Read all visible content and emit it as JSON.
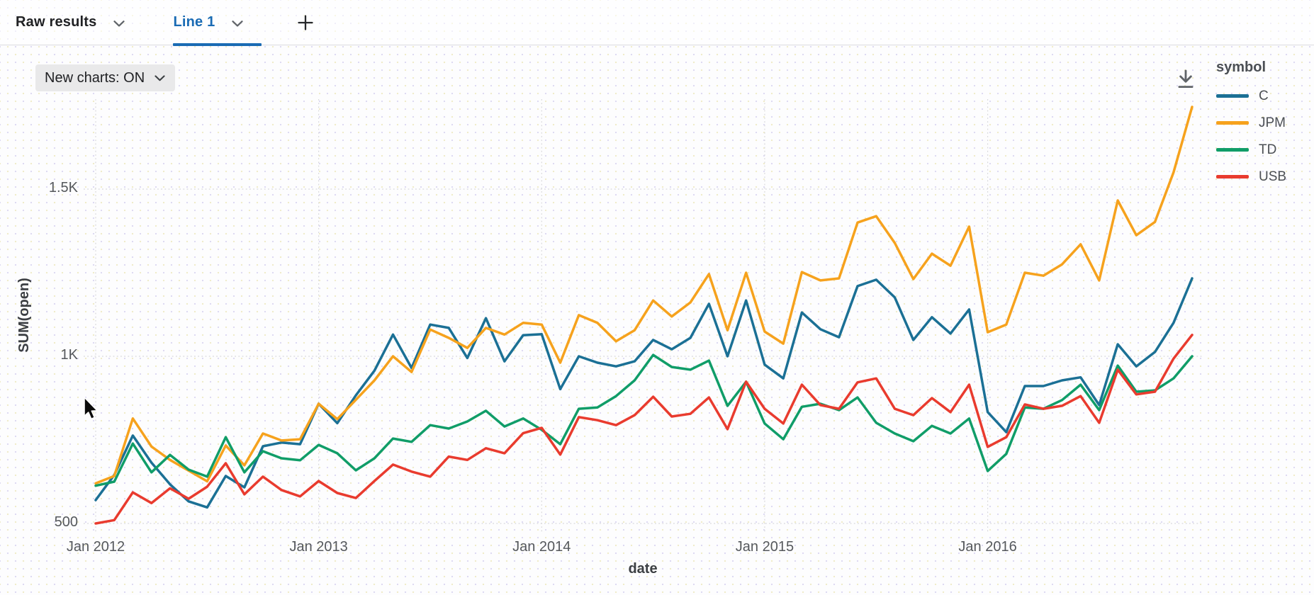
{
  "tab_bar": {
    "tabs": [
      {
        "label": "Raw results",
        "active": false
      },
      {
        "label": "Line 1",
        "active": true
      }
    ],
    "add_label": "+"
  },
  "toolbar": {
    "new_charts_label": "New charts: ON"
  },
  "colors": {
    "accent_blue": "#1a6bb4",
    "grid": "#d7d7da"
  },
  "chart_data": {
    "type": "line",
    "title": "",
    "xlabel": "date",
    "ylabel": "SUM(open)",
    "grid": true,
    "ylim": [
      470,
      1800
    ],
    "x": [
      "2012-01",
      "2012-02",
      "2012-03",
      "2012-04",
      "2012-05",
      "2012-06",
      "2012-07",
      "2012-08",
      "2012-09",
      "2012-10",
      "2012-11",
      "2012-12",
      "2013-01",
      "2013-02",
      "2013-03",
      "2013-04",
      "2013-05",
      "2013-06",
      "2013-07",
      "2013-08",
      "2013-09",
      "2013-10",
      "2013-11",
      "2013-12",
      "2014-01",
      "2014-02",
      "2014-03",
      "2014-04",
      "2014-05",
      "2014-06",
      "2014-07",
      "2014-08",
      "2014-09",
      "2014-10",
      "2014-11",
      "2014-12",
      "2015-01",
      "2015-02",
      "2015-03",
      "2015-04",
      "2015-05",
      "2015-06",
      "2015-07",
      "2015-08",
      "2015-09",
      "2015-10",
      "2015-11",
      "2015-12",
      "2016-01",
      "2016-02",
      "2016-03",
      "2016-04",
      "2016-05",
      "2016-06",
      "2016-07",
      "2016-08",
      "2016-09",
      "2016-10",
      "2016-11",
      "2016-12"
    ],
    "x_ticks": [
      {
        "index": 0,
        "label": "Jan 2012"
      },
      {
        "index": 12,
        "label": "Jan 2013"
      },
      {
        "index": 24,
        "label": "Jan 2014"
      },
      {
        "index": 36,
        "label": "Jan 2015"
      },
      {
        "index": 48,
        "label": "Jan 2016"
      }
    ],
    "y_ticks": [
      {
        "value": 500,
        "label": "500"
      },
      {
        "value": 1000,
        "label": "1K"
      },
      {
        "value": 1500,
        "label": "1.5K"
      }
    ],
    "legend": {
      "title": "symbol",
      "position": "right"
    },
    "series": [
      {
        "name": "C",
        "color": "#1b7095",
        "values": [
          570,
          645,
          763,
          682,
          617,
          566,
          548,
          642,
          608,
          731,
          742,
          737,
          858,
          800,
          883,
          957,
          1065,
          965,
          1095,
          1085,
          995,
          1114,
          985,
          1063,
          1066,
          902,
          1000,
          981,
          970,
          985,
          1049,
          1021,
          1055,
          1157,
          1000,
          1167,
          975,
          934,
          1131,
          1081,
          1057,
          1210,
          1229,
          1176,
          1049,
          1117,
          1068,
          1140,
          833,
          773,
          911,
          911,
          928,
          937,
          854,
          1036,
          970,
          1013,
          1100,
          1233
        ]
      },
      {
        "name": "JPM",
        "color": "#f6a21d",
        "values": [
          620,
          642,
          814,
          730,
          690,
          658,
          626,
          733,
          674,
          769,
          748,
          752,
          858,
          812,
          870,
          928,
          1000,
          953,
          1080,
          1055,
          1025,
          1085,
          1065,
          1100,
          1095,
          981,
          1123,
          1100,
          1045,
          1078,
          1167,
          1119,
          1161,
          1246,
          1078,
          1250,
          1074,
          1038,
          1252,
          1227,
          1233,
          1400,
          1419,
          1339,
          1231,
          1307,
          1271,
          1388,
          1072,
          1095,
          1250,
          1241,
          1275,
          1335,
          1227,
          1466,
          1362,
          1402,
          1550,
          1746
        ]
      },
      {
        "name": "TD",
        "color": "#109d68",
        "values": [
          613,
          625,
          739,
          653,
          705,
          661,
          640,
          758,
          653,
          716,
          695,
          689,
          735,
          710,
          659,
          695,
          754,
          744,
          794,
          784,
          805,
          837,
          790,
          814,
          780,
          737,
          843,
          847,
          881,
          928,
          1004,
          968,
          960,
          987,
          852,
          924,
          799,
          752,
          849,
          858,
          839,
          877,
          801,
          769,
          746,
          792,
          769,
          814,
          657,
          708,
          847,
          843,
          869,
          915,
          839,
          972,
          894,
          898,
          934,
          1000
        ]
      },
      {
        "name": "USB",
        "color": "#e93b2e",
        "values": [
          500,
          510,
          593,
          561,
          605,
          574,
          610,
          680,
          587,
          640,
          600,
          581,
          627,
          591,
          576,
          627,
          676,
          655,
          640,
          700,
          690,
          725,
          710,
          770,
          786,
          706,
          818,
          809,
          794,
          824,
          879,
          820,
          828,
          877,
          782,
          924,
          843,
          799,
          915,
          854,
          843,
          922,
          934,
          843,
          824,
          875,
          833,
          915,
          729,
          758,
          856,
          843,
          852,
          881,
          801,
          960,
          886,
          894,
          993,
          1064
        ]
      }
    ]
  }
}
